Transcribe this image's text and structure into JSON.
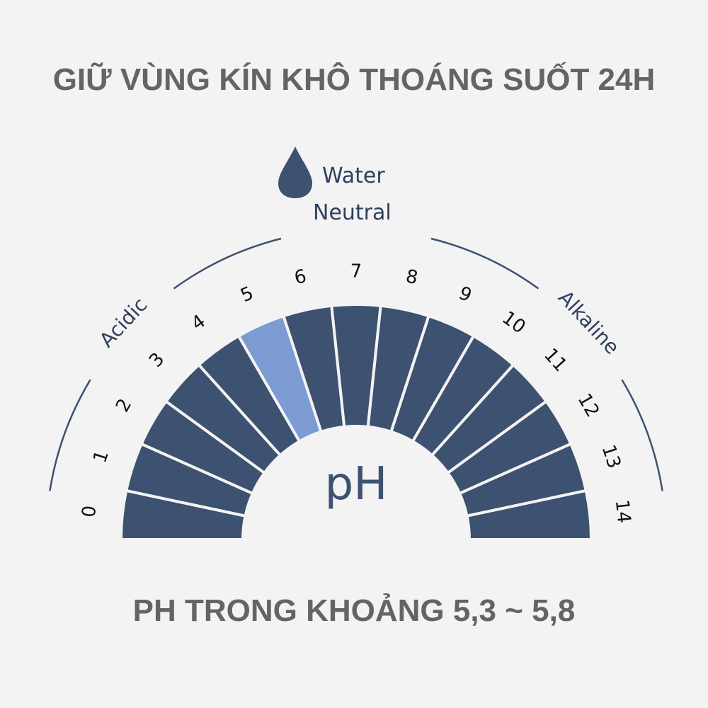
{
  "title": "GIỮ VÙNG KÍN KHÔ THOÁNG SUỐT 24H",
  "footer": "PH TRONG KHOẢNG 5,3 ~ 5,8",
  "scale": {
    "center_label": "pH",
    "labels": [
      "0",
      "1",
      "2",
      "3",
      "4",
      "5",
      "6",
      "7",
      "8",
      "9",
      "10",
      "11",
      "12",
      "13",
      "14"
    ],
    "highlighted": "5",
    "acidic_label": "Acidic",
    "alkaline_label": "Alkaline",
    "neutral_line1": "Water",
    "neutral_line2": "Neutral",
    "neutral_icon": "water-drop-icon"
  },
  "colors": {
    "segment": "#3d5170",
    "highlight": "#7b9bd2",
    "text_dark": "#2f3f5c",
    "headline": "#646464"
  }
}
